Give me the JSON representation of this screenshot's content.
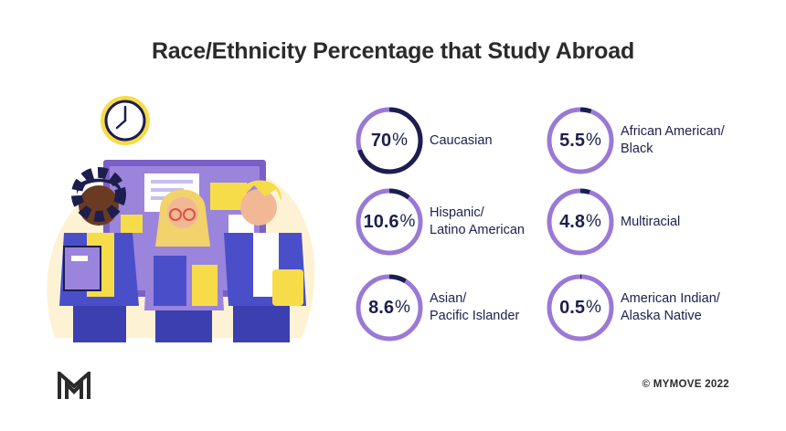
{
  "chart_data": {
    "type": "donut",
    "title": "Race/Ethnicity Percentage that Study Abroad",
    "unit": "%",
    "items": [
      {
        "value": 70,
        "display": "70",
        "label_lines": [
          "Caucasian"
        ]
      },
      {
        "value": 10.6,
        "display": "10.6",
        "label_lines": [
          "Hispanic/",
          "Latino American"
        ]
      },
      {
        "value": 8.6,
        "display": "8.6",
        "label_lines": [
          "Asian/",
          "Pacific Islander"
        ]
      },
      {
        "value": 5.5,
        "display": "5.5",
        "label_lines": [
          "African American/",
          "Black"
        ]
      },
      {
        "value": 4.8,
        "display": "4.8",
        "label_lines": [
          "Multiracial"
        ]
      },
      {
        "value": 0.5,
        "display": "0.5",
        "label_lines": [
          "American Indian/",
          "Alaska Native"
        ]
      }
    ],
    "colors": {
      "filled": "#1d1e4e",
      "track": "#9a79d6"
    }
  },
  "footer": {
    "copyright": "© MYMOVE 2022",
    "logo_icon": "mymove-logo-icon"
  },
  "illustration": {
    "icons": [
      "clock-icon",
      "students-illustration"
    ]
  }
}
